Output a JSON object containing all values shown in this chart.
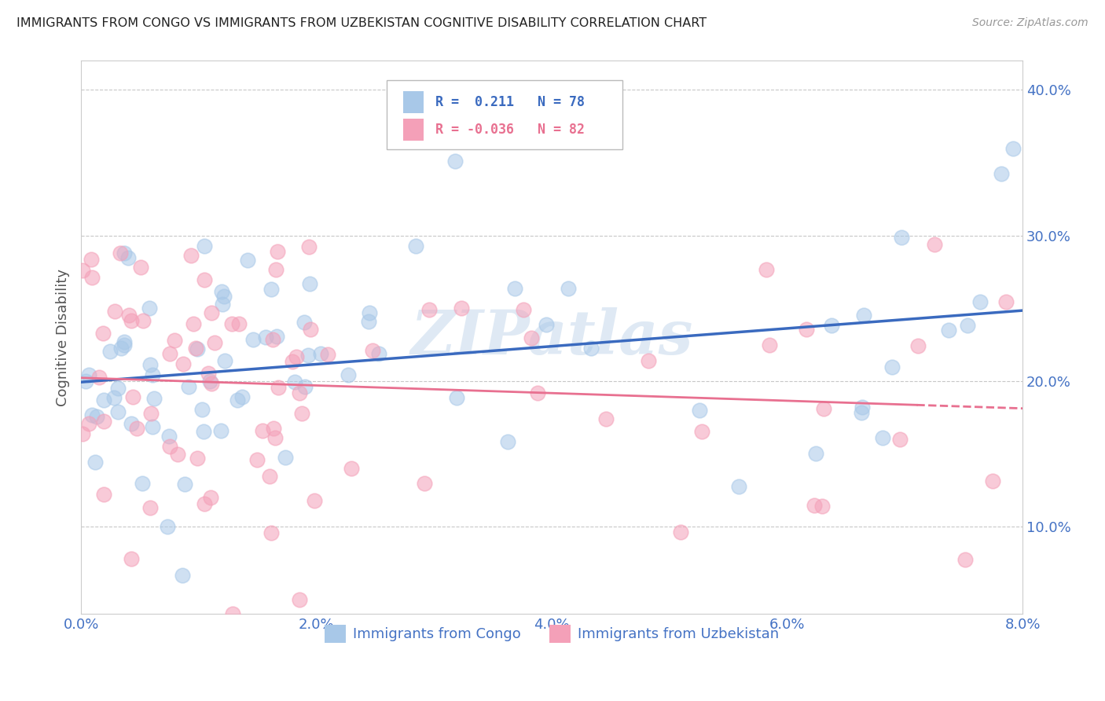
{
  "title": "IMMIGRANTS FROM CONGO VS IMMIGRANTS FROM UZBEKISTAN COGNITIVE DISABILITY CORRELATION CHART",
  "source": "Source: ZipAtlas.com",
  "ylabel": "Cognitive Disability",
  "xlim": [
    0.0,
    0.08
  ],
  "ylim": [
    0.04,
    0.42
  ],
  "xtick_vals": [
    0.0,
    0.02,
    0.04,
    0.06,
    0.08
  ],
  "xtick_labels": [
    "0.0%",
    "2.0%",
    "4.0%",
    "6.0%",
    "8.0%"
  ],
  "ytick_vals": [
    0.1,
    0.2,
    0.3,
    0.4
  ],
  "ytick_labels": [
    "10.0%",
    "20.0%",
    "30.0%",
    "40.0%"
  ],
  "congo_color": "#a8c8e8",
  "uzbekistan_color": "#f4a0b8",
  "congo_line_color": "#3a6abf",
  "uzbekistan_line_color": "#e87090",
  "congo_R": 0.211,
  "congo_N": 78,
  "uzbekistan_R": -0.036,
  "uzbekistan_N": 82,
  "legend_label_congo": "Immigrants from Congo",
  "legend_label_uzbekistan": "Immigrants from Uzbekistan",
  "watermark": "ZIPatlas",
  "background_color": "#ffffff",
  "grid_color": "#c8c8c8",
  "title_color": "#222222",
  "tick_label_color": "#4472c4",
  "ylabel_color": "#555555"
}
